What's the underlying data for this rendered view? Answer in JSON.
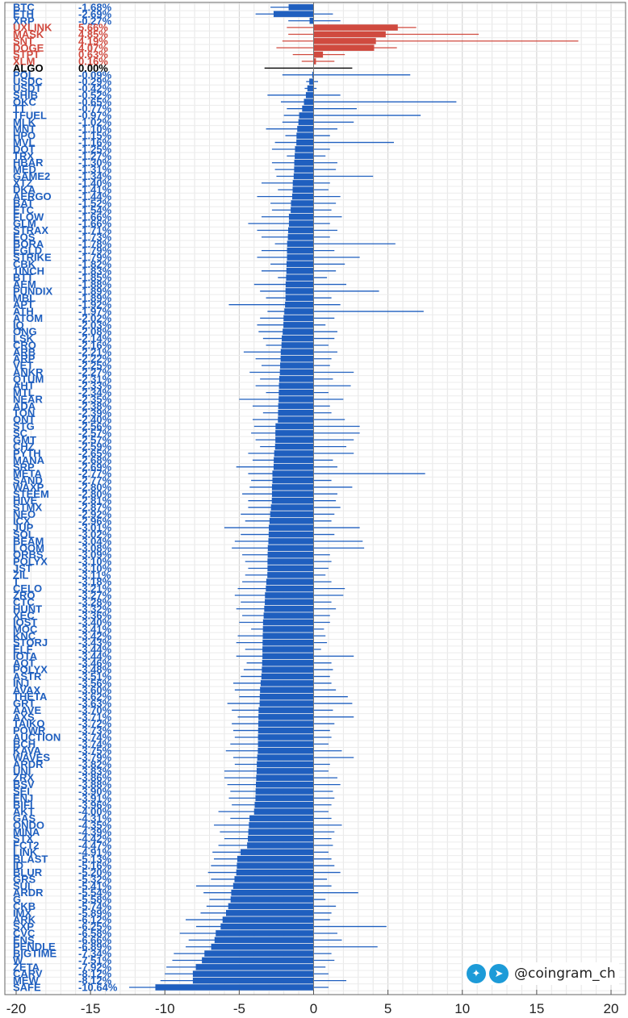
{
  "chart_data": {
    "type": "bar",
    "orientation": "horizontal",
    "xlim": [
      -20,
      20
    ],
    "xticks": [
      "-20",
      "-15",
      "-10",
      "-5",
      "0",
      "5",
      "10",
      "15",
      "20"
    ],
    "grid": true,
    "colors": {
      "negative": "#1f5fbf",
      "positive": "#d04a3f",
      "zero": "#000000"
    },
    "rows": [
      {
        "name": "BTC",
        "label": "-1.68%",
        "value": -1.68,
        "low": -2.9,
        "high": 0
      },
      {
        "name": "ETH",
        "label": "-2.69%",
        "value": -2.69,
        "low": -3.9,
        "high": 1.3
      },
      {
        "name": "XRP",
        "label": "-0.27%",
        "value": -0.27,
        "low": -1.7,
        "high": 1.8
      },
      {
        "name": "UXLINK",
        "label": "5.66%",
        "value": 5.66,
        "low": -1.8,
        "high": 6.9
      },
      {
        "name": "MASK",
        "label": "4.85%",
        "value": 4.85,
        "low": -1.7,
        "high": 11.1
      },
      {
        "name": "SNT",
        "label": "4.19%",
        "value": 4.19,
        "low": -2.1,
        "high": 17.8
      },
      {
        "name": "DOGE",
        "label": "4.07%",
        "value": 4.07,
        "low": -2.5,
        "high": 5.6
      },
      {
        "name": "STPT",
        "label": "0.63%",
        "value": 0.63,
        "low": -1.4,
        "high": 2.1
      },
      {
        "name": "XLM",
        "label": "0.16%",
        "value": 0.16,
        "low": -0.8,
        "high": 1.4
      },
      {
        "name": "ALGO",
        "label": "0.00%",
        "value": 0,
        "low": -3.3,
        "high": 2.6
      },
      {
        "name": "POL",
        "label": "-0.09%",
        "value": -0.09,
        "low": -2.1,
        "high": 6.5
      },
      {
        "name": "USDC",
        "label": "-0.29%",
        "value": -0.29,
        "low": -0.5,
        "high": 0.3
      },
      {
        "name": "USDT",
        "label": "-0.42%",
        "value": -0.42,
        "low": -0.6,
        "high": 0.2
      },
      {
        "name": "SHIB",
        "label": "-0.52%",
        "value": -0.52,
        "low": -3.1,
        "high": 1.8
      },
      {
        "name": "OKC",
        "label": "-0.65%",
        "value": -0.65,
        "low": -2.2,
        "high": 9.6
      },
      {
        "name": "TT",
        "label": "-0.77%",
        "value": -0.77,
        "low": -1.8,
        "high": 2.9
      },
      {
        "name": "TFUEL",
        "label": "-0.97%",
        "value": -0.97,
        "low": -2.0,
        "high": 7.2
      },
      {
        "name": "MLK",
        "label": "-1.02%",
        "value": -1.02,
        "low": -2.1,
        "high": 2.7
      },
      {
        "name": "MNT",
        "label": "-1.10%",
        "value": -1.1,
        "low": -3.2,
        "high": 1.6
      },
      {
        "name": "HPO",
        "label": "-1.15%",
        "value": -1.15,
        "low": -1.9,
        "high": 1.1
      },
      {
        "name": "MVL",
        "label": "-1.16%",
        "value": -1.16,
        "low": -2.6,
        "high": 5.4
      },
      {
        "name": "DOT",
        "label": "-1.25%",
        "value": -1.25,
        "low": -2.8,
        "high": 1.1
      },
      {
        "name": "TRX",
        "label": "-1.27%",
        "value": -1.27,
        "low": -1.8,
        "high": 0.8
      },
      {
        "name": "HBAR",
        "label": "-1.30%",
        "value": -1.3,
        "low": -2.8,
        "high": 1.6
      },
      {
        "name": "MED",
        "label": "-1.31%",
        "value": -1.31,
        "low": -2.6,
        "high": 1.5
      },
      {
        "name": "GAME2",
        "label": "-1.34%",
        "value": -1.34,
        "low": -2.5,
        "high": 4.0
      },
      {
        "name": "XTZ",
        "label": "-1.40%",
        "value": -1.4,
        "low": -3.5,
        "high": 1.1
      },
      {
        "name": "DKA",
        "label": "-1.41%",
        "value": -1.41,
        "low": -2.4,
        "high": 1.0
      },
      {
        "name": "AERGO",
        "label": "-1.44%",
        "value": -1.44,
        "low": -3.8,
        "high": 1.8
      },
      {
        "name": "BAT",
        "label": "-1.52%",
        "value": -1.52,
        "low": -2.9,
        "high": 1.5
      },
      {
        "name": "ETC",
        "label": "-1.54%",
        "value": -1.54,
        "low": -2.8,
        "high": 1.2
      },
      {
        "name": "FLOW",
        "label": "-1.66%",
        "value": -1.66,
        "low": -3.5,
        "high": 1.9
      },
      {
        "name": "GLM",
        "label": "-1.66%",
        "value": -1.66,
        "low": -4.4,
        "high": 1.1
      },
      {
        "name": "STRAX",
        "label": "-1.71%",
        "value": -1.71,
        "low": -3.8,
        "high": 1.6
      },
      {
        "name": "EOS",
        "label": "-1.73%",
        "value": -1.73,
        "low": -3.5,
        "high": 1.1
      },
      {
        "name": "BORA",
        "label": "-1.78%",
        "value": -1.78,
        "low": -2.6,
        "high": 5.5
      },
      {
        "name": "EGLD",
        "label": "-1.79%",
        "value": -1.79,
        "low": -3.5,
        "high": 1.4
      },
      {
        "name": "STRIKE",
        "label": "-1.79%",
        "value": -1.79,
        "low": -3.8,
        "high": 3.1
      },
      {
        "name": "CBK",
        "label": "-1.82%",
        "value": -1.82,
        "low": -2.9,
        "high": 2.1
      },
      {
        "name": "1INCH",
        "label": "-1.83%",
        "value": -1.83,
        "low": -3.5,
        "high": 1.5
      },
      {
        "name": "BTT",
        "label": "-1.85%",
        "value": -1.85,
        "low": -2.4,
        "high": 0.9
      },
      {
        "name": "AEM",
        "label": "-1.88%",
        "value": -1.88,
        "low": -4.0,
        "high": 2.2
      },
      {
        "name": "PUNDIX",
        "label": "-1.89%",
        "value": -1.89,
        "low": -3.6,
        "high": 4.4
      },
      {
        "name": "MBL",
        "label": "-1.89%",
        "value": -1.89,
        "low": -3.2,
        "high": 1.2
      },
      {
        "name": "APT",
        "label": "-1.92%",
        "value": -1.92,
        "low": -5.7,
        "high": 1.8
      },
      {
        "name": "ATH",
        "label": "-1.97%",
        "value": -1.97,
        "low": -3.1,
        "high": 7.4
      },
      {
        "name": "ATOM",
        "label": "-2.02%",
        "value": -2.02,
        "low": -3.6,
        "high": 1.4
      },
      {
        "name": "IQ",
        "label": "-2.03%",
        "value": -2.03,
        "low": -3.8,
        "high": 0.8
      },
      {
        "name": "ONG",
        "label": "-2.08%",
        "value": -2.08,
        "low": -3.7,
        "high": 1.6
      },
      {
        "name": "LSK",
        "label": "-2.14%",
        "value": -2.14,
        "low": -3.4,
        "high": 1.4
      },
      {
        "name": "CRO",
        "label": "-2.16%",
        "value": -2.16,
        "low": -3.2,
        "high": 1.0
      },
      {
        "name": "ARB",
        "label": "-2.21%",
        "value": -2.21,
        "low": -4.7,
        "high": 1.6
      },
      {
        "name": "ARP",
        "label": "-2.22%",
        "value": -2.22,
        "low": -3.9,
        "high": 1.2
      },
      {
        "name": "VET",
        "label": "-2.25%",
        "value": -2.25,
        "low": -3.5,
        "high": 1.1
      },
      {
        "name": "ANKR",
        "label": "-2.27%",
        "value": -2.27,
        "low": -4.3,
        "high": 2.7
      },
      {
        "name": "QTUM",
        "label": "-2.31%",
        "value": -2.31,
        "low": -3.6,
        "high": 1.3
      },
      {
        "name": "AHT",
        "label": "-2.33%",
        "value": -2.33,
        "low": -3.9,
        "high": 2.5
      },
      {
        "name": "MTL",
        "label": "-2.34%",
        "value": -2.34,
        "low": -3.2,
        "high": 1.0
      },
      {
        "name": "NEAR",
        "label": "-2.35%",
        "value": -2.35,
        "low": -5.0,
        "high": 2.0
      },
      {
        "name": "ADA",
        "label": "-2.38%",
        "value": -2.38,
        "low": -4.1,
        "high": 1.1
      },
      {
        "name": "TON",
        "label": "-2.39%",
        "value": -2.39,
        "low": -3.4,
        "high": 1.2
      },
      {
        "name": "ONT",
        "label": "-2.40%",
        "value": -2.4,
        "low": -4.1,
        "high": 2.1
      },
      {
        "name": "STG",
        "label": "-2.56%",
        "value": -2.56,
        "low": -4.0,
        "high": 3.1
      },
      {
        "name": "SC",
        "label": "-2.57%",
        "value": -2.57,
        "low": -4.2,
        "high": 3.1
      },
      {
        "name": "GMT",
        "label": "-2.57%",
        "value": -2.57,
        "low": -3.9,
        "high": 2.7
      },
      {
        "name": "CHZ",
        "label": "-2.59%",
        "value": -2.59,
        "low": -3.6,
        "high": 2.2
      },
      {
        "name": "PYTH",
        "label": "-2.65%",
        "value": -2.65,
        "low": -4.4,
        "high": 2.7
      },
      {
        "name": "MANA",
        "label": "-2.68%",
        "value": -2.68,
        "low": -4.1,
        "high": 1.3
      },
      {
        "name": "SRP",
        "label": "-2.69%",
        "value": -2.69,
        "low": -5.2,
        "high": 1.6
      },
      {
        "name": "META",
        "label": "-2.77%",
        "value": -2.77,
        "low": -4.4,
        "high": 7.5
      },
      {
        "name": "SAND",
        "label": "-2.77%",
        "value": -2.77,
        "low": -4.2,
        "high": 1.2
      },
      {
        "name": "WAXP",
        "label": "-2.80%",
        "value": -2.8,
        "low": -4.3,
        "high": 2.6
      },
      {
        "name": "STEEM",
        "label": "-2.80%",
        "value": -2.8,
        "low": -4.8,
        "high": 1.6
      },
      {
        "name": "HIVE",
        "label": "-2.81%",
        "value": -2.81,
        "low": -4.4,
        "high": 1.5
      },
      {
        "name": "STMX",
        "label": "-2.87%",
        "value": -2.87,
        "low": -4.4,
        "high": 1.8
      },
      {
        "name": "NEO",
        "label": "-2.92%",
        "value": -2.92,
        "low": -4.9,
        "high": 1.4
      },
      {
        "name": "ICX",
        "label": "-2.96%",
        "value": -2.96,
        "low": -4.6,
        "high": 1.2
      },
      {
        "name": "JUP",
        "label": "-3.01%",
        "value": -3.01,
        "low": -6.0,
        "high": 3.1
      },
      {
        "name": "SOL",
        "label": "-3.02%",
        "value": -3.02,
        "low": -4.9,
        "high": 1.4
      },
      {
        "name": "BEAM",
        "label": "-3.04%",
        "value": -3.04,
        "low": -5.3,
        "high": 3.3
      },
      {
        "name": "LOOM",
        "label": "-3.08%",
        "value": -3.08,
        "low": -5.5,
        "high": 3.4
      },
      {
        "name": "ORBS",
        "label": "-3.09%",
        "value": -3.09,
        "low": -4.8,
        "high": 1.1
      },
      {
        "name": "POLYX",
        "label": "-3.10%",
        "value": -3.1,
        "low": -4.6,
        "high": 1.2
      },
      {
        "name": "JST",
        "label": "-3.10%",
        "value": -3.1,
        "low": -4.4,
        "high": 1.0
      },
      {
        "name": "ZIL",
        "label": "-3.11%",
        "value": -3.11,
        "low": -4.6,
        "high": 0.8
      },
      {
        "name": "T",
        "label": "-3.18%",
        "value": -3.18,
        "low": -4.8,
        "high": 1.2
      },
      {
        "name": "CELO",
        "label": "-3.21%",
        "value": -3.21,
        "low": -5.1,
        "high": 2.1
      },
      {
        "name": "ZRO",
        "label": "-3.27%",
        "value": -3.27,
        "low": -5.3,
        "high": 2.0
      },
      {
        "name": "CTC",
        "label": "-3.28%",
        "value": -3.28,
        "low": -4.9,
        "high": 1.2
      },
      {
        "name": "HUNT",
        "label": "-3.32%",
        "value": -3.32,
        "low": -5.2,
        "high": 1.5
      },
      {
        "name": "XEC",
        "label": "-3.36%",
        "value": -3.36,
        "low": -4.8,
        "high": 1.1
      },
      {
        "name": "IOST",
        "label": "-3.40%",
        "value": -3.4,
        "low": -5.0,
        "high": 1.1
      },
      {
        "name": "MOC",
        "label": "-3.41%",
        "value": -3.41,
        "low": -4.2,
        "high": 0.7
      },
      {
        "name": "KNC",
        "label": "-3.42%",
        "value": -3.42,
        "low": -5.1,
        "high": 0.8
      },
      {
        "name": "STORJ",
        "label": "-3.43%",
        "value": -3.43,
        "low": -5.2,
        "high": 0.9
      },
      {
        "name": "ELF",
        "label": "-3.44%",
        "value": -3.44,
        "low": -4.6,
        "high": 0.5
      },
      {
        "name": "IOTA",
        "label": "-3.44%",
        "value": -3.44,
        "low": -5.2,
        "high": 2.7
      },
      {
        "name": "AQT",
        "label": "-3.46%",
        "value": -3.46,
        "low": -4.5,
        "high": 1.2
      },
      {
        "name": "POLYX",
        "label": "-3.48%",
        "value": -3.48,
        "low": -4.7,
        "high": 1.3
      },
      {
        "name": "ASTR",
        "label": "-3.51%",
        "value": -3.51,
        "low": -4.9,
        "high": 1.1
      },
      {
        "name": "INJ",
        "label": "-3.56%",
        "value": -3.56,
        "low": -5.4,
        "high": 1.2
      },
      {
        "name": "AVAX",
        "label": "-3.60%",
        "value": -3.6,
        "low": -5.3,
        "high": 1.5
      },
      {
        "name": "THETA",
        "label": "-3.62%",
        "value": -3.62,
        "low": -5.0,
        "high": 2.3
      },
      {
        "name": "GRT",
        "label": "-3.63%",
        "value": -3.63,
        "low": -5.8,
        "high": 2.6
      },
      {
        "name": "AAVE",
        "label": "-3.70%",
        "value": -3.7,
        "low": -5.5,
        "high": 1.3
      },
      {
        "name": "AXS",
        "label": "-3.71%",
        "value": -3.71,
        "low": -5.1,
        "high": 2.7
      },
      {
        "name": "TAIKO",
        "label": "-3.72%",
        "value": -3.72,
        "low": -5.5,
        "high": 1.4
      },
      {
        "name": "POWR",
        "label": "-3.73%",
        "value": -3.73,
        "low": -5.4,
        "high": 1.1
      },
      {
        "name": "AUCTION",
        "label": "-3.74%",
        "value": -3.74,
        "low": -5.3,
        "high": 1.2
      },
      {
        "name": "BCH",
        "label": "-3.74%",
        "value": -3.74,
        "low": -5.6,
        "high": 1.0
      },
      {
        "name": "KAVA",
        "label": "-3.75%",
        "value": -3.75,
        "low": -5.9,
        "high": 1.9
      },
      {
        "name": "WAVES",
        "label": "-3.79%",
        "value": -3.79,
        "low": -5.4,
        "high": 2.7
      },
      {
        "name": "ARDR",
        "label": "-3.82%",
        "value": -3.82,
        "low": -5.3,
        "high": 1.1
      },
      {
        "name": "UNI",
        "label": "-3.83%",
        "value": -3.83,
        "low": -6.0,
        "high": 1.0
      },
      {
        "name": "ZRX",
        "label": "-3.86%",
        "value": -3.86,
        "low": -6.0,
        "high": 1.6
      },
      {
        "name": "BSV",
        "label": "-3.88%",
        "value": -3.88,
        "low": -5.8,
        "high": 1.8
      },
      {
        "name": "SEI",
        "label": "-3.90%",
        "value": -3.9,
        "low": -5.6,
        "high": 1.3
      },
      {
        "name": "ENJ",
        "label": "-3.91%",
        "value": -3.91,
        "low": -5.7,
        "high": 1.4
      },
      {
        "name": "BIFI",
        "label": "-3.96%",
        "value": -3.96,
        "low": -5.5,
        "high": 1.2
      },
      {
        "name": "AKT",
        "label": "-4.00%",
        "value": -4.0,
        "low": -6.4,
        "high": 1.0
      },
      {
        "name": "GAS",
        "label": "-4.31%",
        "value": -4.31,
        "low": -5.6,
        "high": 1.2
      },
      {
        "name": "ONDO",
        "label": "-4.35%",
        "value": -4.35,
        "low": -6.7,
        "high": 1.9
      },
      {
        "name": "MINA",
        "label": "-4.39%",
        "value": -4.39,
        "low": -6.3,
        "high": 1.4
      },
      {
        "name": "STX",
        "label": "-4.42%",
        "value": -4.42,
        "low": -6.0,
        "high": 1.2
      },
      {
        "name": "FCT2",
        "label": "-4.47%",
        "value": -4.47,
        "low": -6.4,
        "high": 1.3
      },
      {
        "name": "LINK",
        "label": "-4.91%",
        "value": -4.91,
        "low": -6.8,
        "high": 1.0
      },
      {
        "name": "BLAST",
        "label": "-5.13%",
        "value": -5.13,
        "low": -6.7,
        "high": 1.2
      },
      {
        "name": "ID",
        "label": "-5.16%",
        "value": -5.16,
        "low": -6.9,
        "high": 1.4
      },
      {
        "name": "BLUR",
        "label": "-5.20%",
        "value": -5.2,
        "low": -7.1,
        "high": 1.8
      },
      {
        "name": "GRS",
        "label": "-5.32%",
        "value": -5.32,
        "low": -6.9,
        "high": 0.9
      },
      {
        "name": "SUI",
        "label": "-5.41%",
        "value": -5.41,
        "low": -7.9,
        "high": 1.2
      },
      {
        "name": "ARDR",
        "label": "-5.54%",
        "value": -5.54,
        "low": -7.4,
        "high": 3.0
      },
      {
        "name": "G",
        "label": "-5.58%",
        "value": -5.58,
        "low": -7.0,
        "high": 0.8
      },
      {
        "name": "CKB",
        "label": "-5.74%",
        "value": -5.74,
        "low": -7.2,
        "high": 1.5
      },
      {
        "name": "IMX",
        "label": "-5.89%",
        "value": -5.89,
        "low": -7.6,
        "high": 1.2
      },
      {
        "name": "ARK",
        "label": "-6.12%",
        "value": -6.12,
        "low": -8.6,
        "high": 1.1
      },
      {
        "name": "SXP",
        "label": "-6.25%",
        "value": -6.25,
        "low": -7.9,
        "high": 4.9
      },
      {
        "name": "CVC",
        "label": "-6.58%",
        "value": -6.58,
        "low": -9.0,
        "high": 1.6
      },
      {
        "name": "ENS",
        "label": "-6.66%",
        "value": -6.66,
        "low": -8.4,
        "high": 1.9
      },
      {
        "name": "PENDLE",
        "label": "-6.89%",
        "value": -6.89,
        "low": -8.6,
        "high": 4.3
      },
      {
        "name": "BIGTIME",
        "label": "-7.34%",
        "value": -7.34,
        "low": -9.4,
        "high": 1.2
      },
      {
        "name": "W",
        "label": "-7.51%",
        "value": -7.51,
        "low": -9.5,
        "high": 1.4
      },
      {
        "name": "ZETA",
        "label": "-7.92%",
        "value": -7.92,
        "low": -9.9,
        "high": 0.8
      },
      {
        "name": "CARV",
        "label": "-8.12%",
        "value": -8.12,
        "low": -10.0,
        "high": 1.0
      },
      {
        "name": "MEW",
        "label": "-8.12%",
        "value": -8.12,
        "low": -10.3,
        "high": 2.2
      },
      {
        "name": "SAFE",
        "label": "-10.64%",
        "value": -10.64,
        "low": -12.4,
        "high": 1.0
      }
    ]
  },
  "watermark": {
    "handle": "@coingram_ch",
    "icons": [
      "twitter-icon",
      "telegram-icon"
    ]
  }
}
